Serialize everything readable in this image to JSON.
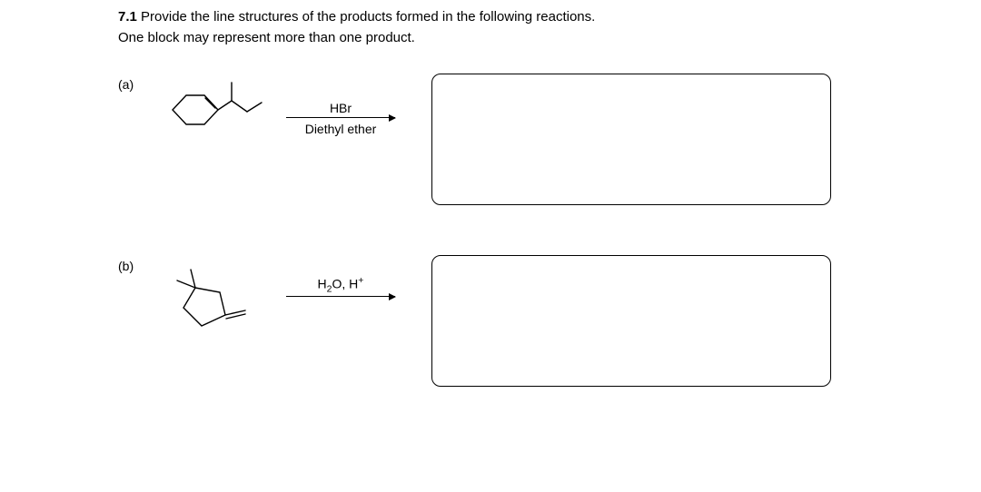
{
  "header": {
    "number": "7.1",
    "text_line1": "Provide the line structures of the products formed in the following reactions.",
    "text_line2": "One block may represent more than one product."
  },
  "parts": {
    "a": {
      "label": "(a)",
      "reagent_top": "HBr",
      "reagent_bottom": "Diethyl ether",
      "structure": {
        "type": "skeletal",
        "description": "cyclohexene fused with sec-butyl side group",
        "stroke": "#000000",
        "stroke_width": 1.4
      }
    },
    "b": {
      "label": "(b)",
      "reagent_html": "H<span class='sub'>2</span>O, H<span class='sup'>+</span>",
      "structure": {
        "type": "skeletal",
        "description": "1,2-dimethylcyclopentane with exocyclic alkene",
        "stroke": "#000000",
        "stroke_width": 1.4
      }
    }
  },
  "styling": {
    "page_bg": "#ffffff",
    "text_color": "#000000",
    "font_family": "Arial",
    "box_border_color": "#000000",
    "box_border_radius": 10,
    "box_border_width": 1.5
  }
}
